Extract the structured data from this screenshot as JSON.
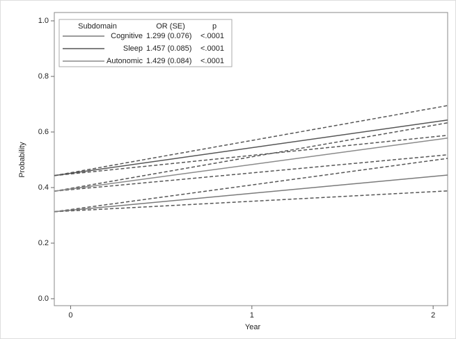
{
  "chart_data": {
    "type": "line",
    "x_label": "Year",
    "y_label": "Probability",
    "x": [
      -0.09,
      2.08
    ],
    "xlim": [
      -0.09,
      2.08
    ],
    "xticks": [
      0,
      1,
      2
    ],
    "ylim": [
      0,
      1
    ],
    "yticks": [
      {
        "value": 0,
        "label": "0.0"
      },
      {
        "value": 0.2,
        "label": "0.2"
      },
      {
        "value": 0.4,
        "label": "0.4"
      },
      {
        "value": 0.6,
        "label": "0.6"
      },
      {
        "value": 0.8,
        "label": "0.8"
      },
      {
        "value": 1,
        "label": "1.0"
      }
    ],
    "legend_headers": [
      "Subdomain",
      "OR (SE)",
      "p"
    ],
    "band_color": "#555555",
    "series": [
      {
        "name": "Cognitive",
        "color": "#7a7a7a",
        "values": [
          0.313,
          0.445
        ],
        "lower": [
          0.313,
          0.388
        ],
        "upper": [
          0.313,
          0.505
        ],
        "or_se": "1.299 (0.076)",
        "p": "<.0001"
      },
      {
        "name": "Sleep",
        "color": "#555555",
        "values": [
          0.443,
          0.643
        ],
        "lower": [
          0.443,
          0.588
        ],
        "upper": [
          0.443,
          0.695
        ],
        "or_se": "1.457 (0.085)",
        "p": "<.0001"
      },
      {
        "name": "Autonomic",
        "color": "#8a8a8a",
        "values": [
          0.387,
          0.578
        ],
        "lower": [
          0.387,
          0.518
        ],
        "upper": [
          0.387,
          0.633
        ],
        "or_se": "1.429 (0.084)",
        "p": "<.0001"
      }
    ]
  }
}
